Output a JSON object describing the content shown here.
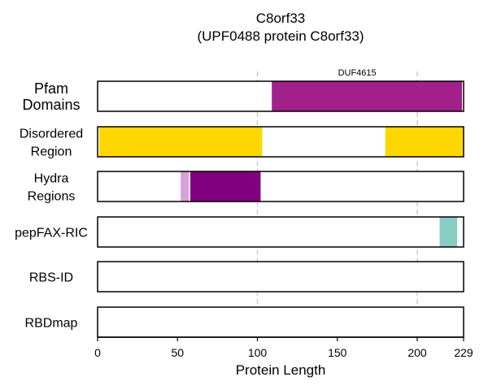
{
  "chart_data": {
    "type": "domain-tracks",
    "title": "C8orf33",
    "subtitle": "(UPF0488 protein C8orf33)",
    "xlabel": "Protein Length",
    "xlim": [
      0,
      229
    ],
    "xticks": [
      0,
      50,
      100,
      150,
      200,
      229
    ],
    "tick_labels": [
      "0",
      "50",
      "100",
      "150",
      "200",
      "229"
    ],
    "gridlines": [
      100,
      200
    ],
    "tracks": [
      {
        "label_lines": [
          "Pfam",
          "Domains"
        ],
        "segments": [
          {
            "start": 109,
            "end": 228,
            "color": "#a2208a",
            "label": "DUF4615"
          }
        ]
      },
      {
        "label_lines": [
          "Disordered",
          "Region"
        ],
        "segments": [
          {
            "start": 1,
            "end": 103,
            "color": "#ffd700",
            "label": ""
          },
          {
            "start": 180,
            "end": 229,
            "color": "#ffd700",
            "label": ""
          }
        ]
      },
      {
        "label_lines": [
          "Hydra",
          "Regions"
        ],
        "segments": [
          {
            "start": 52,
            "end": 57,
            "color": "#d8a0d8",
            "label": ""
          },
          {
            "start": 58,
            "end": 102,
            "color": "#800080",
            "label": ""
          }
        ]
      },
      {
        "label_lines": [
          "pepFAX-RIC"
        ],
        "segments": [
          {
            "start": 214,
            "end": 225,
            "color": "#88ccc2",
            "label": ""
          }
        ]
      },
      {
        "label_lines": [
          "RBS-ID"
        ],
        "segments": []
      },
      {
        "label_lines": [
          "RBDmap"
        ],
        "segments": []
      }
    ]
  }
}
